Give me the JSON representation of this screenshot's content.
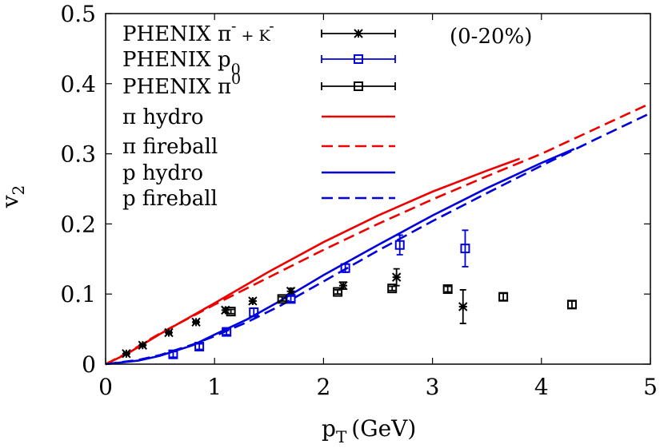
{
  "chart_data": {
    "type": "line",
    "xlabel": "p",
    "xlabel_sub": "T",
    "xlabel_unit": "(GeV)",
    "ylabel": "v",
    "ylabel_sub": "2",
    "xlim": [
      0,
      5
    ],
    "ylim": [
      0,
      0.5
    ],
    "xticks": [
      "0",
      "1",
      "2",
      "3",
      "4",
      "5"
    ],
    "yticks": [
      "0",
      "0.1",
      "0.2",
      "0.3",
      "0.4",
      "0.5"
    ],
    "grid": false,
    "legend_position": "top-left",
    "annotation": "(0-20%)",
    "series": [
      {
        "name": "PHENIX π⁻ + K⁻",
        "kind": "points",
        "marker": "star",
        "color": "#000000",
        "x": [
          0.19,
          0.34,
          0.58,
          0.83,
          1.1,
          1.35,
          1.7,
          2.18,
          2.67,
          3.28
        ],
        "y": [
          0.015,
          0.027,
          0.045,
          0.06,
          0.077,
          0.09,
          0.104,
          0.112,
          0.124,
          0.082
        ],
        "yerr": [
          0.002,
          0.002,
          0.002,
          0.002,
          0.003,
          0.003,
          0.004,
          0.005,
          0.012,
          0.024
        ]
      },
      {
        "name": "PHENIX p₀",
        "kind": "points",
        "marker": "square",
        "color": "#0000dd",
        "x": [
          0.62,
          0.86,
          1.11,
          1.36,
          1.7,
          2.2,
          2.7,
          3.3
        ],
        "y": [
          0.014,
          0.025,
          0.046,
          0.074,
          0.093,
          0.137,
          0.17,
          0.165
        ],
        "yerr": [
          0.004,
          0.004,
          0.004,
          0.006,
          0.004,
          0.006,
          0.014,
          0.026
        ]
      },
      {
        "name": "PHENIX π⁰",
        "kind": "points",
        "marker": "square",
        "color": "#000000",
        "x": [
          1.15,
          1.62,
          2.13,
          2.63,
          3.14,
          3.65,
          4.28
        ],
        "y": [
          0.075,
          0.093,
          0.103,
          0.108,
          0.107,
          0.096,
          0.085
        ],
        "yerr": [
          0.003,
          0.003,
          0.003,
          0.003,
          0.004,
          0.005,
          0.005
        ]
      },
      {
        "name": "π hydro",
        "kind": "line",
        "style": "solid",
        "color": "#ee0000",
        "x": [
          0,
          0.2,
          0.5,
          1.0,
          1.5,
          2.0,
          2.5,
          3.0,
          3.5,
          3.8
        ],
        "y": [
          0,
          0.015,
          0.043,
          0.087,
          0.132,
          0.174,
          0.212,
          0.246,
          0.276,
          0.293
        ]
      },
      {
        "name": "π fireball",
        "kind": "line",
        "style": "dashed",
        "color": "#ee0000",
        "x": [
          0,
          0.2,
          0.5,
          1.0,
          1.5,
          2.0,
          2.5,
          3.0,
          3.5,
          4.0,
          4.5,
          5.0
        ],
        "y": [
          0,
          0.016,
          0.044,
          0.085,
          0.124,
          0.163,
          0.2,
          0.235,
          0.268,
          0.3,
          0.336,
          0.372
        ]
      },
      {
        "name": "p hydro",
        "kind": "line",
        "style": "solid",
        "color": "#0000dd",
        "x": [
          0,
          0.3,
          0.5,
          0.8,
          1.0,
          1.3,
          1.6,
          2.0,
          2.5,
          3.0,
          3.5,
          4.0,
          4.3
        ],
        "y": [
          0,
          0.005,
          0.012,
          0.027,
          0.042,
          0.064,
          0.09,
          0.127,
          0.17,
          0.212,
          0.251,
          0.287,
          0.307
        ]
      },
      {
        "name": "p fireball",
        "kind": "line",
        "style": "dashed",
        "color": "#0000dd",
        "x": [
          0,
          0.3,
          0.5,
          0.8,
          1.0,
          1.3,
          1.6,
          2.0,
          2.5,
          3.0,
          3.5,
          4.0,
          4.5,
          5.0
        ],
        "y": [
          0,
          0.006,
          0.013,
          0.028,
          0.04,
          0.06,
          0.083,
          0.118,
          0.162,
          0.204,
          0.244,
          0.283,
          0.321,
          0.358
        ]
      }
    ]
  }
}
